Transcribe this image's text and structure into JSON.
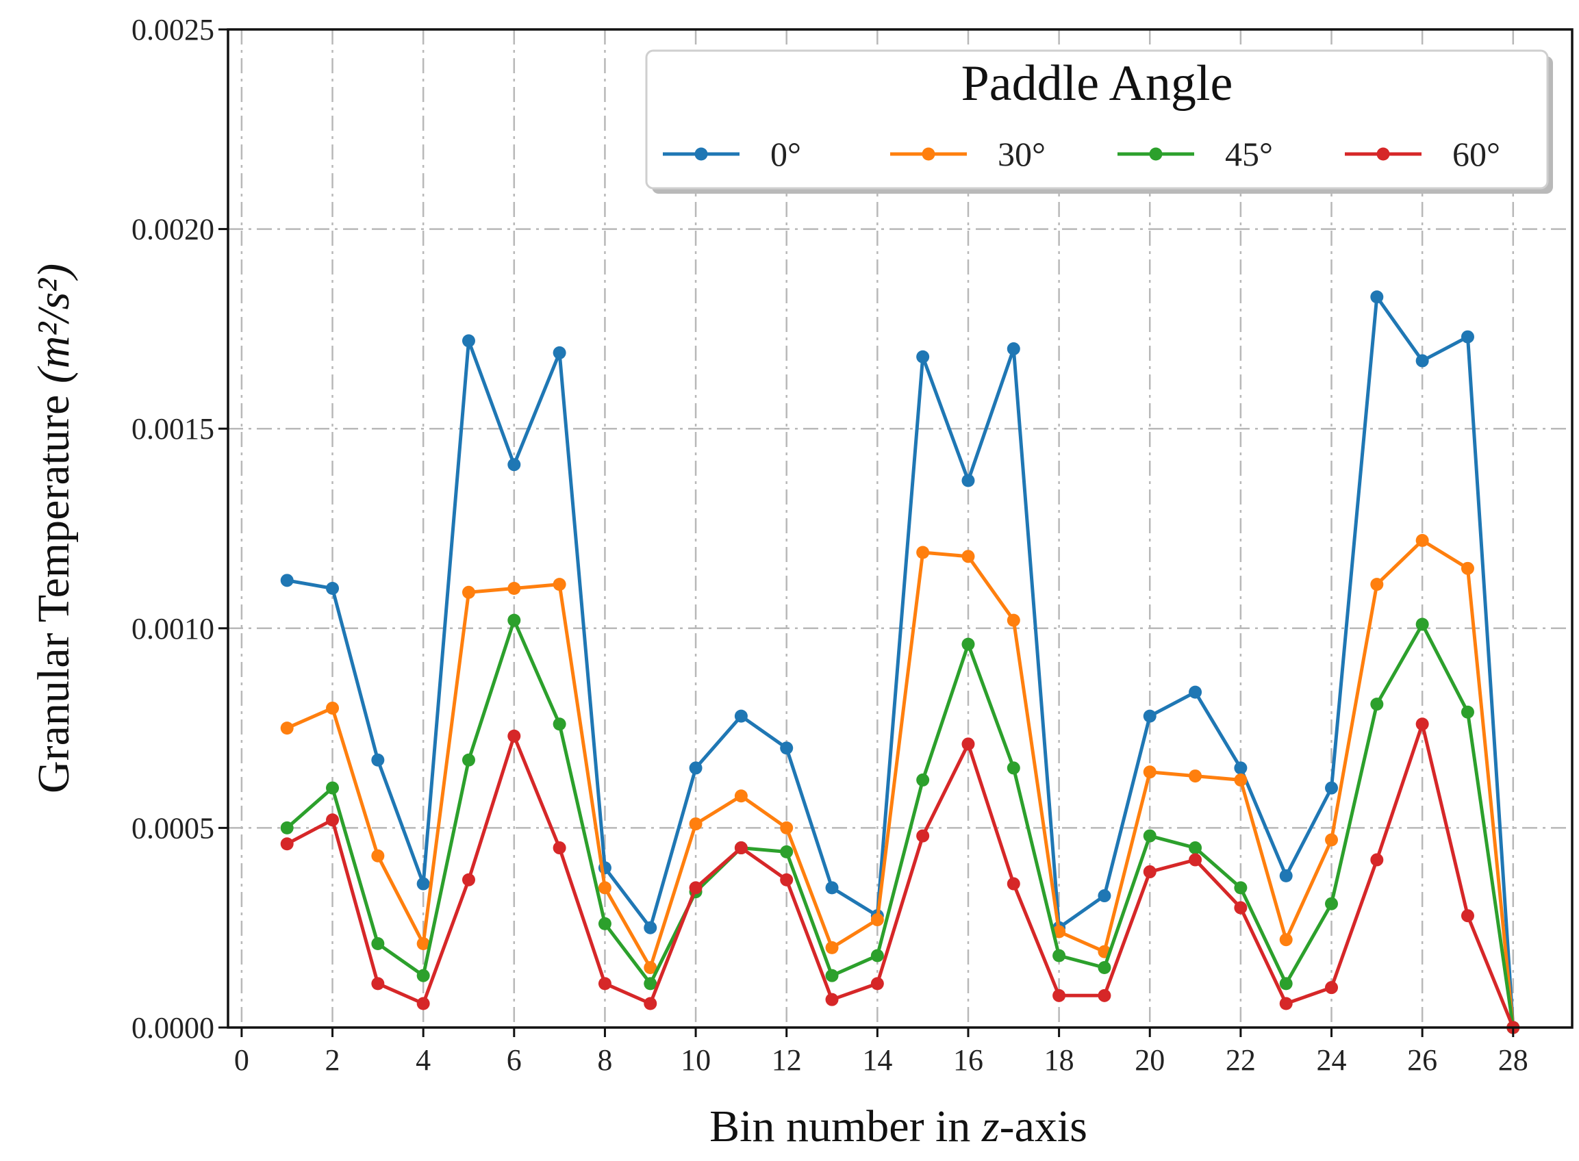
{
  "chart_data": {
    "type": "line",
    "title": "",
    "xlabel_prefix": "Bin number in ",
    "xlabel_var": "z",
    "xlabel_suffix": "-axis",
    "ylabel": "Granular Temperature",
    "ylabel_unit": "(m²/s²)",
    "xlim": [
      -0.3,
      29.3
    ],
    "ylim": [
      0,
      0.0025
    ],
    "xticks": [
      0,
      2,
      4,
      6,
      8,
      10,
      12,
      14,
      16,
      18,
      20,
      22,
      24,
      26,
      28
    ],
    "yticks": [
      0.0,
      0.0005,
      0.001,
      0.0015,
      0.002,
      0.0025
    ],
    "ytick_labels": [
      "0.0000",
      "0.0005",
      "0.0010",
      "0.0015",
      "0.0020",
      "0.0025"
    ],
    "grid": true,
    "legend": {
      "title": "Paddle Angle",
      "position": "top-right",
      "ncol": 4
    },
    "x": [
      1,
      2,
      3,
      4,
      5,
      6,
      7,
      8,
      9,
      10,
      11,
      12,
      13,
      14,
      15,
      16,
      17,
      18,
      19,
      20,
      21,
      22,
      23,
      24,
      25,
      26,
      27,
      28
    ],
    "series": [
      {
        "name": "0°",
        "color": "#1f77b4",
        "values": [
          0.00112,
          0.0011,
          0.00067,
          0.00036,
          0.00172,
          0.00141,
          0.00169,
          0.0004,
          0.00025,
          0.00065,
          0.00078,
          0.0007,
          0.00035,
          0.00028,
          0.00168,
          0.00137,
          0.0017,
          0.00025,
          0.00033,
          0.00078,
          0.00084,
          0.00065,
          0.00038,
          0.0006,
          0.00183,
          0.00167,
          0.00173,
          0.0
        ]
      },
      {
        "name": "30°",
        "color": "#ff7f0e",
        "values": [
          0.00075,
          0.0008,
          0.00043,
          0.00021,
          0.00109,
          0.0011,
          0.00111,
          0.00035,
          0.00015,
          0.00051,
          0.00058,
          0.0005,
          0.0002,
          0.00027,
          0.00119,
          0.00118,
          0.00102,
          0.00024,
          0.00019,
          0.00064,
          0.00063,
          0.00062,
          0.00022,
          0.00047,
          0.00111,
          0.00122,
          0.00115,
          0.0
        ]
      },
      {
        "name": "45°",
        "color": "#2ca02c",
        "values": [
          0.0005,
          0.0006,
          0.00021,
          0.00013,
          0.00067,
          0.00102,
          0.00076,
          0.00026,
          0.00011,
          0.00034,
          0.00045,
          0.00044,
          0.00013,
          0.00018,
          0.00062,
          0.00096,
          0.00065,
          0.00018,
          0.00015,
          0.00048,
          0.00045,
          0.00035,
          0.00011,
          0.00031,
          0.00081,
          0.00101,
          0.00079,
          0.0
        ]
      },
      {
        "name": "60°",
        "color": "#d62728",
        "values": [
          0.00046,
          0.00052,
          0.00011,
          6e-05,
          0.00037,
          0.00073,
          0.00045,
          0.00011,
          6e-05,
          0.00035,
          0.00045,
          0.00037,
          7e-05,
          0.00011,
          0.00048,
          0.00071,
          0.00036,
          8e-05,
          8e-05,
          0.00039,
          0.00042,
          0.0003,
          6e-05,
          0.0001,
          0.00042,
          0.00076,
          0.00028,
          0.0
        ]
      }
    ]
  }
}
